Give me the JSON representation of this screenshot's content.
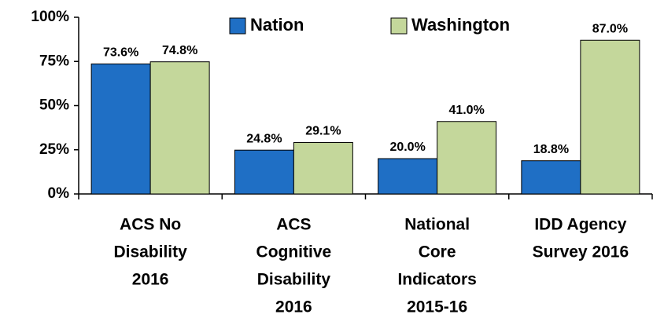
{
  "chart_data": {
    "type": "bar",
    "categories": [
      [
        "ACS No",
        "Disability",
        "2016"
      ],
      [
        "ACS",
        "Cognitive",
        "Disability",
        "2016"
      ],
      [
        "National",
        "Core",
        "Indicators",
        "2015-16"
      ],
      [
        "IDD Agency",
        "Survey 2016"
      ]
    ],
    "series": [
      {
        "name": "Nation",
        "color": "#1f6fc5",
        "values": [
          73.6,
          24.8,
          20.0,
          18.8
        ],
        "value_labels": [
          "73.6%",
          "24.8%",
          "20.0%",
          "18.8%"
        ]
      },
      {
        "name": "Washington",
        "color": "#c4d79b",
        "values": [
          74.8,
          29.1,
          41.0,
          87.0
        ],
        "value_labels": [
          "74.8%",
          "29.1%",
          "41.0%",
          "87.0%"
        ]
      }
    ],
    "ylim": [
      0,
      100
    ],
    "yticks": [
      {
        "value": 0,
        "label": "0%"
      },
      {
        "value": 25,
        "label": "25%"
      },
      {
        "value": 50,
        "label": "50%"
      },
      {
        "value": 75,
        "label": "75%"
      },
      {
        "value": 100,
        "label": "100%"
      }
    ],
    "legend": "top"
  }
}
